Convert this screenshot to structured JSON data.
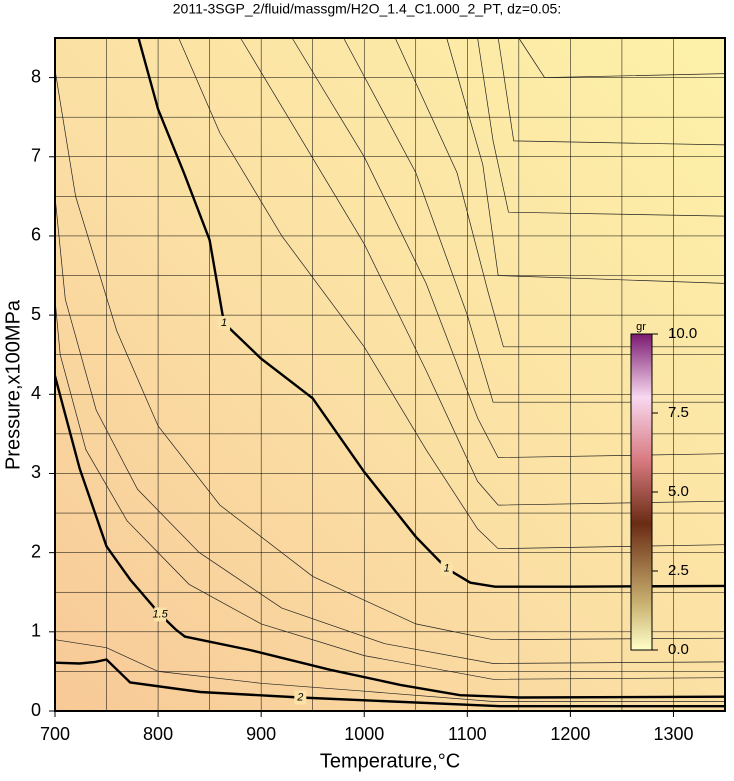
{
  "chart_data": {
    "type": "contour",
    "title": "2011-3SGP_2/fluid/massgm/H2O_1.4_C1.000_2_PT, dz=0.05:",
    "x_label": "Temperature,°C",
    "y_label": "Pressure,x100MPa",
    "xlim": [
      700,
      1350
    ],
    "ylim": [
      0,
      8.5
    ],
    "xticks": [
      700,
      800,
      900,
      1000,
      1100,
      1200,
      1300
    ],
    "yticks": [
      0,
      1,
      2,
      3,
      4,
      5,
      6,
      7,
      8
    ],
    "xgrid": [
      750,
      850,
      950,
      1050,
      1150,
      1250
    ],
    "ygrid": [
      0.5,
      1.5,
      2.5,
      3.5,
      4.5,
      5.5,
      6.5,
      7.5
    ],
    "grid": true,
    "series": [
      {
        "name": "1",
        "color": "#000000",
        "x": [
          781,
          800,
          825,
          850,
          864,
          900,
          950,
          1000,
          1050,
          1080,
          1103,
          1127,
          1200,
          1350
        ],
        "y": [
          8.5,
          7.6,
          6.8,
          5.95,
          4.9,
          4.45,
          3.95,
          3.02,
          2.2,
          1.8,
          1.62,
          1.57,
          1.57,
          1.58
        ]
      },
      {
        "name": "1.5",
        "color": "#000000",
        "x": [
          700,
          724,
          750,
          773,
          802,
          817,
          826,
          889,
          967,
          1035,
          1093,
          1151,
          1350
        ],
        "y": [
          4.23,
          3.06,
          2.08,
          1.66,
          1.22,
          1.03,
          0.94,
          0.77,
          0.52,
          0.33,
          0.2,
          0.17,
          0.18
        ]
      },
      {
        "name": "2",
        "color": "#000000",
        "x": [
          700,
          724,
          739,
          750,
          773,
          841,
          938,
          1132,
          1350
        ],
        "y": [
          0.61,
          0.6,
          0.62,
          0.65,
          0.36,
          0.24,
          0.17,
          0.06,
          0.06
        ]
      }
    ],
    "contours": [
      {
        "x": [
          820,
          860,
          920,
          1000,
          1060,
          1110,
          1130,
          1350
        ],
        "y": [
          8.5,
          7.3,
          6.0,
          4.6,
          3.3,
          2.3,
          2.05,
          2.1
        ]
      },
      {
        "x": [
          880,
          940,
          1000,
          1060,
          1110,
          1130,
          1350
        ],
        "y": [
          8.5,
          7.2,
          5.9,
          4.3,
          2.9,
          2.6,
          2.65
        ]
      },
      {
        "x": [
          930,
          1000,
          1060,
          1110,
          1130,
          1350
        ],
        "y": [
          8.5,
          7.0,
          5.4,
          3.7,
          3.2,
          3.25
        ]
      },
      {
        "x": [
          980,
          1050,
          1100,
          1125,
          1350
        ],
        "y": [
          8.5,
          6.8,
          5.0,
          3.9,
          3.9
        ]
      },
      {
        "x": [
          1030,
          1090,
          1120,
          1135,
          1350
        ],
        "y": [
          8.5,
          6.8,
          5.3,
          4.6,
          4.6
        ]
      },
      {
        "x": [
          1080,
          1115,
          1130,
          1350
        ],
        "y": [
          8.5,
          6.9,
          5.5,
          5.4
        ]
      },
      {
        "x": [
          1110,
          1125,
          1140,
          1350
        ],
        "y": [
          8.5,
          7.2,
          6.3,
          6.25
        ]
      },
      {
        "x": [
          1130,
          1145,
          1350
        ],
        "y": [
          8.5,
          7.2,
          7.15
        ]
      },
      {
        "x": [
          1150,
          1175,
          1350
        ],
        "y": [
          8.5,
          8.0,
          8.05
        ]
      },
      {
        "x": [
          700,
          720,
          760,
          800,
          860,
          950,
          1050,
          1125,
          1350
        ],
        "y": [
          8.1,
          6.5,
          4.8,
          3.6,
          2.6,
          1.7,
          1.1,
          0.9,
          0.92
        ]
      },
      {
        "x": [
          700,
          710,
          740,
          780,
          840,
          920,
          1020,
          1125,
          1350
        ],
        "y": [
          6.5,
          5.2,
          3.8,
          2.8,
          2.0,
          1.3,
          0.85,
          0.6,
          0.62
        ]
      },
      {
        "x": [
          700,
          705,
          730,
          770,
          830,
          900,
          1000,
          1125,
          1350
        ],
        "y": [
          5.2,
          4.5,
          3.3,
          2.4,
          1.6,
          1.1,
          0.7,
          0.4,
          0.42
        ]
      },
      {
        "x": [
          700,
          750,
          800,
          900,
          1000,
          1125,
          1350
        ],
        "y": [
          0.9,
          0.8,
          0.5,
          0.35,
          0.25,
          0.12,
          0.12
        ]
      }
    ],
    "colorbar": {
      "label": "gr",
      "lim": [
        0,
        10
      ],
      "ticks": [
        {
          "value": 0,
          "label": "0.0"
        },
        {
          "value": 2.5,
          "label": "2.5"
        },
        {
          "value": 5,
          "label": "5.0"
        },
        {
          "value": 7.5,
          "label": "7.5"
        },
        {
          "value": 10,
          "label": "10.0"
        }
      ]
    }
  }
}
